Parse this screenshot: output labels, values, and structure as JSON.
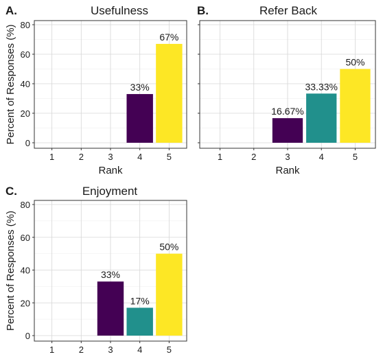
{
  "colors": {
    "rank3": "#440154",
    "rank4": "#21908C",
    "rank5": "#FDE725",
    "grid_major": "#d6d6d6",
    "grid_minor": "#ececec",
    "panel_border": "#333333",
    "axis_text": "#4d4d4d"
  },
  "ylabel": "Percent of Responses (%)",
  "chart_data": [
    {
      "type": "bar",
      "tag": "A.",
      "title": "Usefulness",
      "categories": [
        "1",
        "2",
        "3",
        "4",
        "5"
      ],
      "values": [
        0,
        0,
        0,
        33,
        67
      ],
      "labels": [
        "",
        "",
        "",
        "33%",
        "67%"
      ],
      "fill_keys": [
        "rank3",
        "rank3",
        "rank3",
        "rank3",
        "rank5"
      ],
      "xlabel": "Rank",
      "ylabel": "Percent of Responses (%)",
      "ylim": [
        0,
        80
      ],
      "yticks": [
        "0",
        "20",
        "40",
        "60",
        "80"
      ]
    },
    {
      "type": "bar",
      "tag": "B.",
      "title": "Refer Back",
      "categories": [
        "1",
        "2",
        "3",
        "4",
        "5"
      ],
      "values": [
        0,
        0,
        16.67,
        33.33,
        50
      ],
      "labels": [
        "",
        "",
        "16.67%",
        "33.33%",
        "50%"
      ],
      "fill_keys": [
        "rank3",
        "rank3",
        "rank3",
        "rank4",
        "rank5"
      ],
      "xlabel": "Rank",
      "ylabel": "",
      "ylim": [
        0,
        80
      ],
      "yticks": []
    },
    {
      "type": "bar",
      "tag": "C.",
      "title": "Enjoyment",
      "categories": [
        "1",
        "2",
        "3",
        "4",
        "5"
      ],
      "values": [
        0,
        0,
        33,
        17,
        50
      ],
      "labels": [
        "",
        "",
        "33%",
        "17%",
        "50%"
      ],
      "fill_keys": [
        "rank3",
        "rank3",
        "rank3",
        "rank4",
        "rank5"
      ],
      "xlabel": "",
      "ylabel": "Percent of Responses (%)",
      "ylim": [
        0,
        80
      ],
      "yticks": [
        "0",
        "20",
        "40",
        "60",
        "80"
      ]
    }
  ]
}
